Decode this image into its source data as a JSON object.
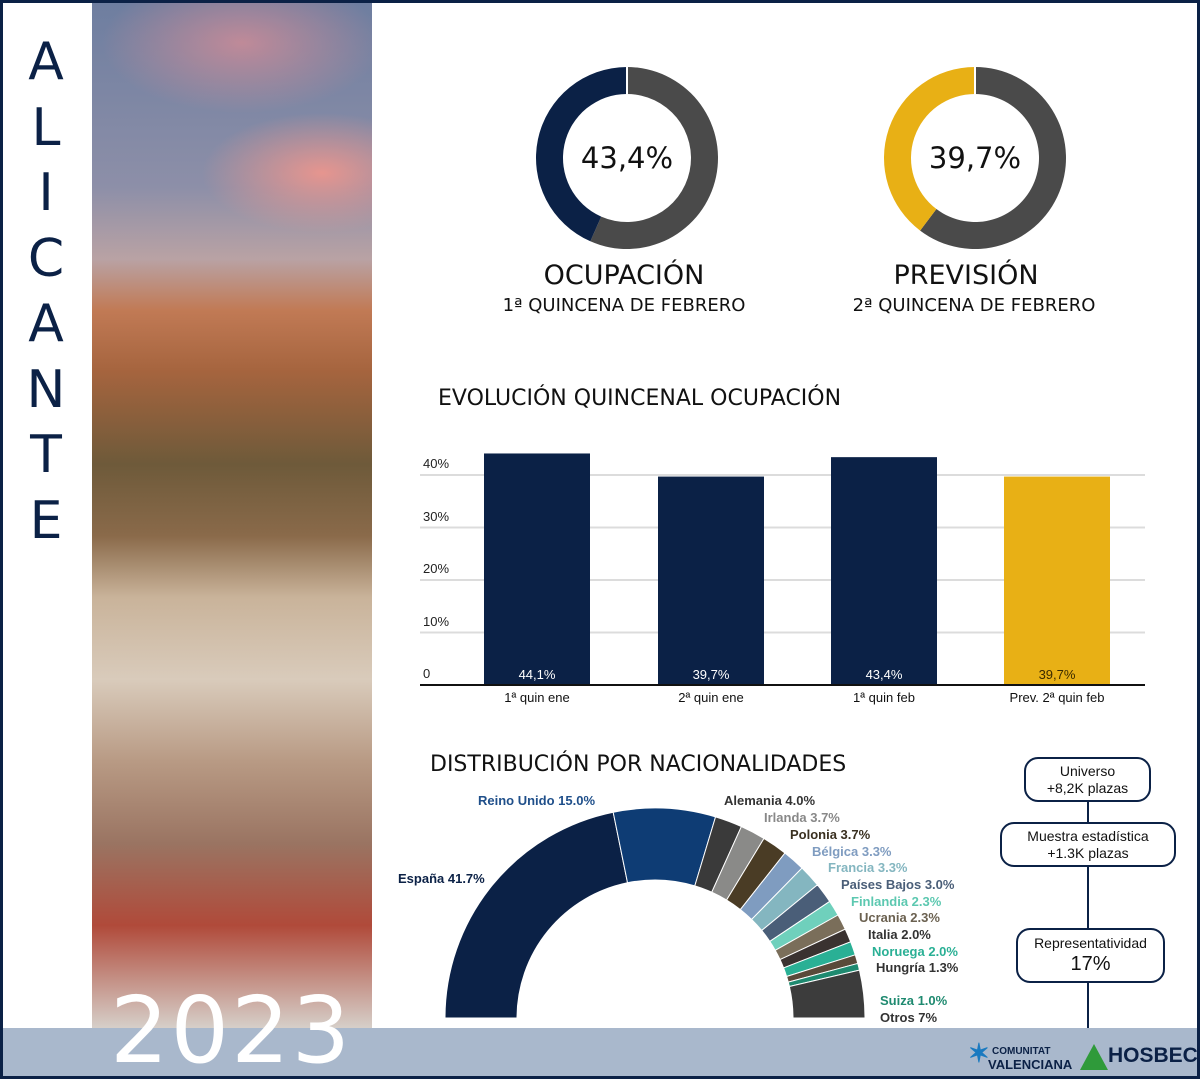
{
  "sidebar": {
    "city_letters": [
      "A",
      "L",
      "I",
      "C",
      "A",
      "N",
      "T",
      "E"
    ],
    "year": "2023"
  },
  "kpis": [
    {
      "value": "43,4%",
      "fraction": 0.434,
      "title": "OCUPACIÓN",
      "subtitle": "1ª QUINCENA DE FEBRERO",
      "color": "#0b2146",
      "rest_color": "#4a4a4a"
    },
    {
      "value": "39,7%",
      "fraction": 0.397,
      "title": "PREVISIÓN",
      "subtitle": "2ª QUINCENA DE FEBRERO",
      "color": "#e8b015",
      "rest_color": "#4a4a4a"
    }
  ],
  "chart_data": [
    {
      "type": "bar",
      "title": "EVOLUCIÓN QUINCENAL OCUPACIÓN",
      "categories": [
        "1ª quin ene",
        "2ª quin ene",
        "1ª quin feb",
        "Prev. 2ª quin feb"
      ],
      "values": [
        44.1,
        39.7,
        43.4,
        39.7
      ],
      "value_labels": [
        "44,1%",
        "39,7%",
        "43,4%",
        "39,7%"
      ],
      "bar_colors": [
        "#0b2146",
        "#0b2146",
        "#0b2146",
        "#e8b015"
      ],
      "yticks": [
        "0",
        "10%",
        "20%",
        "30%",
        "40%"
      ],
      "ylim": [
        0,
        40
      ],
      "grid": true
    },
    {
      "type": "pie",
      "subtype": "half-donut",
      "title": "DISTRIBUCIÓN POR NACIONALIDADES",
      "slices": [
        {
          "name": "España",
          "value": 41.7,
          "label": "España 41.7%",
          "color": "#0b2146",
          "label_color": "#0b2146"
        },
        {
          "name": "Reino Unido",
          "value": 15.0,
          "label": "Reino Unido 15.0%",
          "color": "#0e3c74",
          "label_color": "#1f4f8a"
        },
        {
          "name": "Alemania",
          "value": 4.0,
          "label": "Alemania 4.0%",
          "color": "#3a3a3a",
          "label_color": "#333333"
        },
        {
          "name": "Irlanda",
          "value": 3.7,
          "label": "Irlanda 3.7%",
          "color": "#8a8a88",
          "label_color": "#888888"
        },
        {
          "name": "Polonia",
          "value": 3.7,
          "label": "Polonia 3.7%",
          "color": "#4a3c25",
          "label_color": "#3a3020"
        },
        {
          "name": "Bélgica",
          "value": 3.3,
          "label": "Bélgica 3.3%",
          "color": "#7f9cc0",
          "label_color": "#7f9cc0"
        },
        {
          "name": "Francia",
          "value": 3.3,
          "label": "Francia 3.3%",
          "color": "#84b6c0",
          "label_color": "#84b6c0"
        },
        {
          "name": "Países Bajos",
          "value": 3.0,
          "label": "Países Bajos 3.0%",
          "color": "#4a5e78",
          "label_color": "#4a5e78"
        },
        {
          "name": "Finlandia",
          "value": 2.3,
          "label": "Finlandia 2.3%",
          "color": "#6fd0bc",
          "label_color": "#5cc8b0"
        },
        {
          "name": "Ucrania",
          "value": 2.3,
          "label": "Ucrania 2.3%",
          "color": "#7a6e5a",
          "label_color": "#6b6150"
        },
        {
          "name": "Italia",
          "value": 2.0,
          "label": "Italia 2.0%",
          "color": "#3a3230",
          "label_color": "#333333"
        },
        {
          "name": "Noruega",
          "value": 2.0,
          "label": "Noruega 2.0%",
          "color": "#2ab095",
          "label_color": "#2ab095"
        },
        {
          "name": "Hungría",
          "value": 1.3,
          "label": "Hungría 1.3%",
          "color": "#5a4a3a",
          "label_color": "#333333"
        },
        {
          "name": "Suiza",
          "value": 1.0,
          "label": "Suiza 1.0%",
          "color": "#1f8a70",
          "label_color": "#1f8a70"
        },
        {
          "name": "Otros",
          "value": 7,
          "label": "Otros 7%",
          "color": "#3c3c3c",
          "label_color": "#333333"
        }
      ]
    }
  ],
  "sample": {
    "universe": {
      "title": "Universo",
      "value": "+8,2K plazas"
    },
    "sample": {
      "title": "Muestra estadística",
      "value": "+1.3K plazas"
    },
    "representativeness": {
      "title": "Representatividad",
      "value": "17%"
    }
  },
  "logos": {
    "cv_line1": "COMUNITAT",
    "cv_line2": "VALENCIANA",
    "hosbec": "HOSBEC"
  },
  "colors": {
    "navy": "#0b2146",
    "yellow": "#e8b015",
    "bar_bg": "#a9b8cc"
  }
}
